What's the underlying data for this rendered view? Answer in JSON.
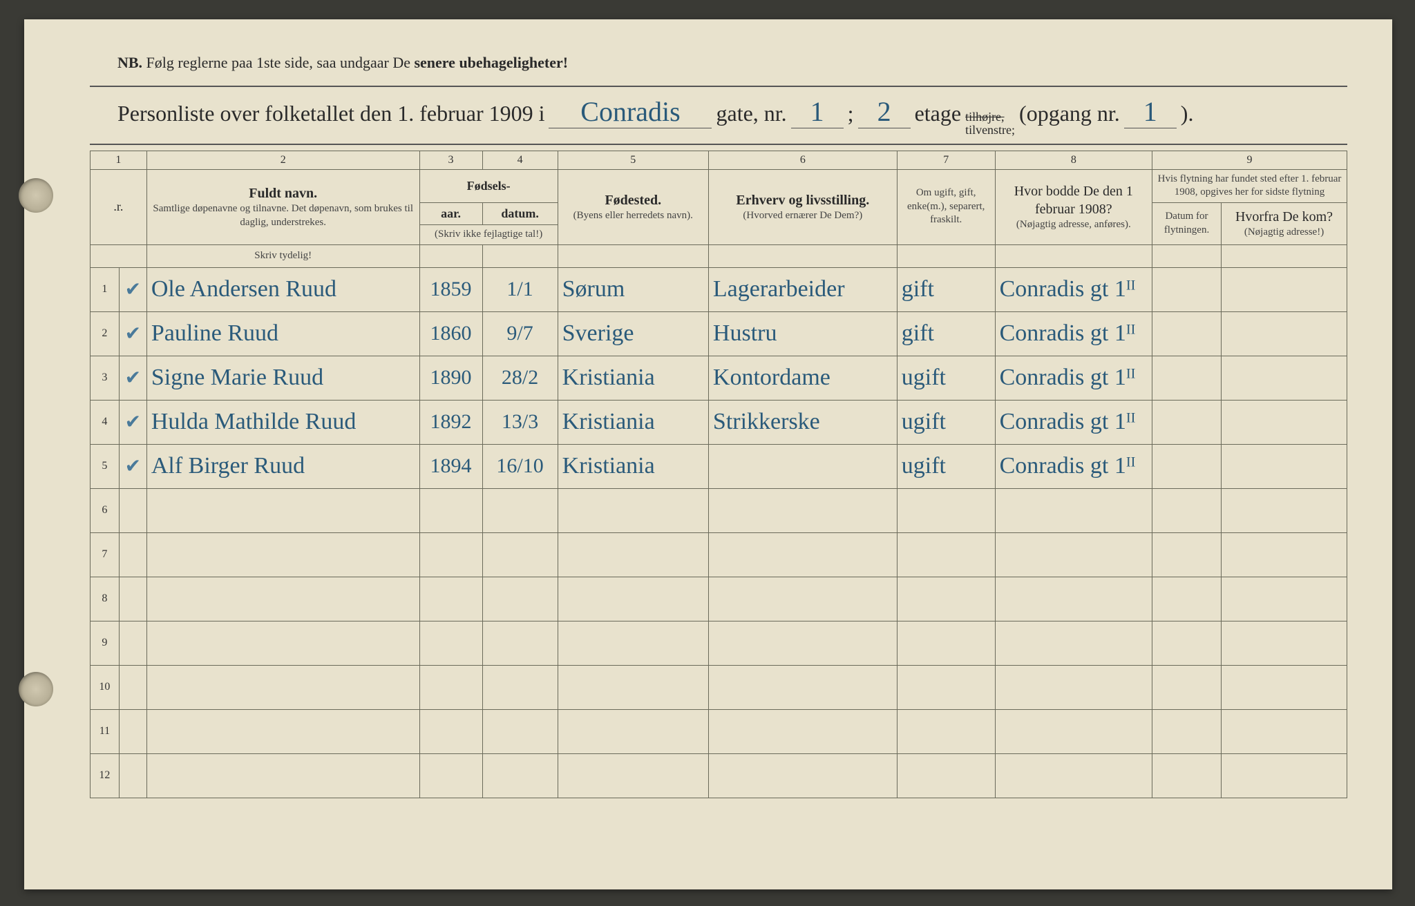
{
  "nb": {
    "prefix": "NB.",
    "text_a": "Følg reglerne paa 1ste side, saa undgaar De ",
    "text_b": "senere ubehageligheter!"
  },
  "title": {
    "lead": "Personliste over folketallet den 1. februar 1909 i",
    "street": "Conradis",
    "gate_label": "gate, nr.",
    "gate_nr": "1",
    "semi": ";",
    "etage_nr": "2",
    "etage_label": "etage",
    "side_top": "tilhøjre,",
    "side_bot": "tilvenstre;",
    "opgang_label": "(opgang nr.",
    "opgang_nr": "1",
    "close": ")."
  },
  "colnums": [
    "1",
    "2",
    "3",
    "4",
    "5",
    "6",
    "7",
    "8",
    "9"
  ],
  "headers": {
    "nr": ".r.",
    "name_main": "Fuldt navn.",
    "name_sub": "Samtlige døpenavne og tilnavne. Det døpenavn, som brukes til daglig, understrekes.",
    "fodsels": "Fødsels-",
    "aar": "aar.",
    "datum": "datum.",
    "aar_sub": "(Skriv ikke fejlagtige tal!)",
    "fodested": "Fødested.",
    "fodested_sub": "(Byens eller herredets navn).",
    "erhverv": "Erhverv og livsstilling.",
    "erhverv_sub": "(Hvorved ernærer De Dem?)",
    "status": "Om ugift, gift, enke(m.), separert, fraskilt.",
    "addr1908": "Hvor bodde De den 1 februar 1908?",
    "addr1908_sub": "(Nøjagtig adresse, anføres).",
    "move_top": "Hvis flytning har fundet sted efter 1. februar 1908, opgives her for sidste flytning",
    "move_date": "Datum for flytningen.",
    "move_from": "Hvorfra De kom?",
    "move_from_sub": "(Nøjagtig adresse!)"
  },
  "skriv": "Skriv tydelig!",
  "rows": [
    {
      "n": "1",
      "chk": "✔",
      "name": "Ole Andersen Ruud",
      "year": "1859",
      "date": "1/1",
      "place": "Sørum",
      "occ": "Lagerarbeider",
      "stat": "gift",
      "addr": "Conradis gt 1ᴵᴵ"
    },
    {
      "n": "2",
      "chk": "✔",
      "name": "Pauline Ruud",
      "year": "1860",
      "date": "9/7",
      "place": "Sverige",
      "occ": "Hustru",
      "stat": "gift",
      "addr": "Conradis gt 1ᴵᴵ"
    },
    {
      "n": "3",
      "chk": "✔",
      "name": "Signe Marie Ruud",
      "year": "1890",
      "date": "28/2",
      "place": "Kristiania",
      "occ": "Kontordame",
      "stat": "ugift",
      "addr": "Conradis gt 1ᴵᴵ"
    },
    {
      "n": "4",
      "chk": "✔",
      "name": "Hulda Mathilde Ruud",
      "year": "1892",
      "date": "13/3",
      "place": "Kristiania",
      "occ": "Strikkerske",
      "stat": "ugift",
      "addr": "Conradis gt 1ᴵᴵ"
    },
    {
      "n": "5",
      "chk": "✔",
      "name": "Alf Birger Ruud",
      "year": "1894",
      "date": "16/10",
      "place": "Kristiania",
      "occ": "",
      "stat": "ugift",
      "addr": "Conradis gt 1ᴵᴵ"
    },
    {
      "n": "6"
    },
    {
      "n": "7"
    },
    {
      "n": "8"
    },
    {
      "n": "9"
    },
    {
      "n": "10"
    },
    {
      "n": "11"
    },
    {
      "n": "12"
    }
  ]
}
